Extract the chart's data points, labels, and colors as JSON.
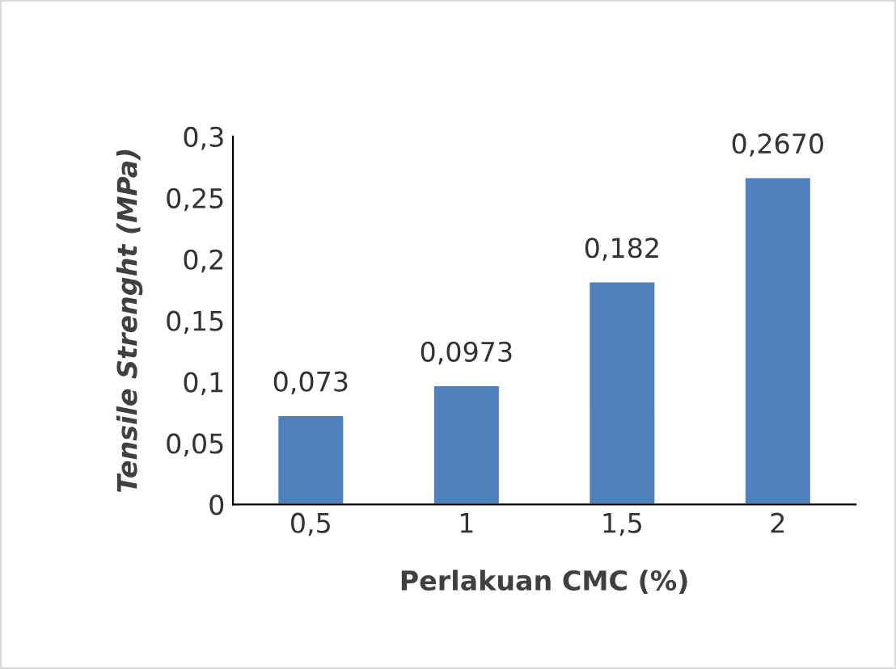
{
  "chart_data": {
    "type": "bar",
    "xlabel": "Perlakuan CMC (%)",
    "ylabel": "Tensile Strenght (MPa)",
    "categories": [
      "0,5",
      "1",
      "1,5",
      "2"
    ],
    "values": [
      0.073,
      0.0973,
      0.182,
      0.267
    ],
    "value_labels": [
      "0,073",
      "0,0973",
      "0,182",
      "0,2670"
    ],
    "color": "#4f81bd",
    "ylim": [
      0,
      0.3
    ],
    "yticks": [
      {
        "value": 0,
        "label": "0"
      },
      {
        "value": 0.05,
        "label": "0,05"
      },
      {
        "value": 0.1,
        "label": "0,1"
      },
      {
        "value": 0.15,
        "label": "0,15"
      },
      {
        "value": 0.2,
        "label": "0,2"
      },
      {
        "value": 0.25,
        "label": "0,25"
      },
      {
        "value": 0.3,
        "label": "0,3"
      }
    ],
    "grid": false,
    "legend": false
  }
}
